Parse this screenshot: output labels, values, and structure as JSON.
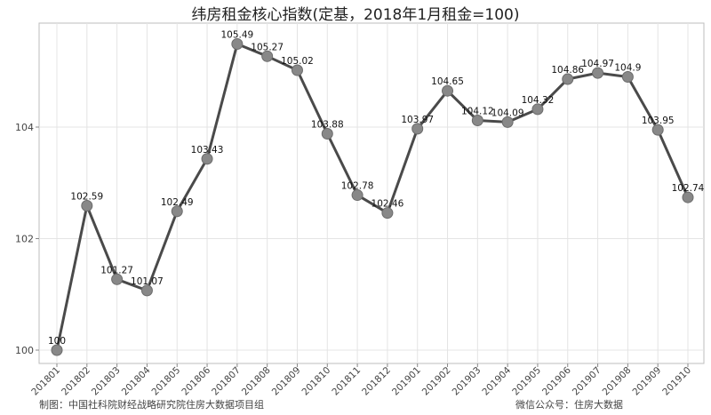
{
  "chart_data": {
    "type": "line",
    "title": "纬房租金核心指数(定基，2018年1月租金=100)",
    "xlabel": "",
    "ylabel": "",
    "categories": [
      "201801",
      "201802",
      "201803",
      "201804",
      "201805",
      "201806",
      "201807",
      "201808",
      "201809",
      "201810",
      "201811",
      "201812",
      "201901",
      "201902",
      "201903",
      "201904",
      "201905",
      "201906",
      "201907",
      "201908",
      "201909",
      "201910"
    ],
    "series": [
      {
        "values": [
          100,
          102.59,
          101.27,
          101.07,
          102.49,
          103.43,
          105.49,
          105.27,
          105.02,
          103.88,
          102.78,
          102.46,
          103.97,
          104.65,
          104.12,
          104.09,
          104.32,
          104.86,
          104.97,
          104.9,
          103.95,
          102.74
        ]
      }
    ],
    "data_labels": [
      "100",
      "102.59",
      "101.27",
      "101.07",
      "102.49",
      "103.43",
      "105.49",
      "105.27",
      "105.02",
      "103.88",
      "102.78",
      "102.46",
      "103.97",
      "104.65",
      "104.12",
      "104.09",
      "104.32",
      "104.86",
      "104.97",
      "104.9",
      "103.95",
      "102.74"
    ],
    "yticks": [
      100,
      102,
      104
    ],
    "ytick_labels": [
      "100",
      "102",
      "104"
    ],
    "ylim": [
      99.8,
      105.9
    ],
    "grid": true,
    "colors": {
      "line": "#4a4a4a",
      "marker": "#888888",
      "grid": "#e4e4e4",
      "border": "#bdbdbd"
    }
  },
  "footer": {
    "left": "制图：中国社科院财经战略研究院住房大数据项目组",
    "right": "微信公众号：住房大数据"
  }
}
